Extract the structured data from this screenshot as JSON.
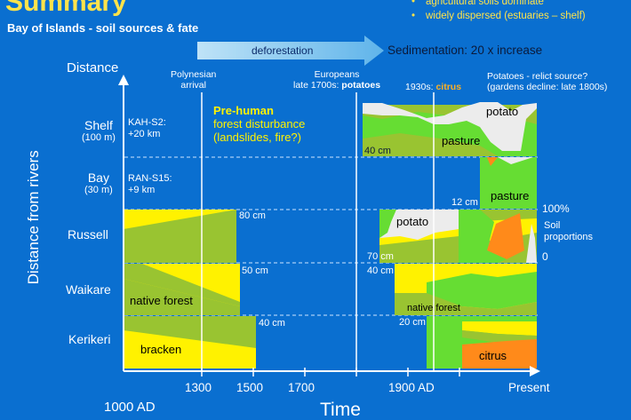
{
  "title": "Summary",
  "subtitle": "Bay of Islands - soil sources & fate",
  "bullets": [
    "agricultural soils dominate",
    "widely dispersed (estuaries – shelf)"
  ],
  "bullet_symbol": "•",
  "arrow_label": "deforestation",
  "sedimentation": "Sedimentation:  20 x increase",
  "axes": {
    "y_title": "Distance",
    "y_rotated": "Distance from rivers",
    "x_title": "Time",
    "x_ticks": [
      "1000 AD",
      "1300",
      "1500",
      "1700",
      "1900 AD",
      "Present"
    ]
  },
  "rows": {
    "shelf": {
      "label": "Shelf",
      "sub": "(100 m)"
    },
    "bay": {
      "label": "Bay",
      "sub": "(30 m)"
    },
    "russell": {
      "label": "Russell"
    },
    "waikare": {
      "label": "Waikare"
    },
    "kerikeri": {
      "label": "Kerikeri"
    }
  },
  "cores": {
    "kah": {
      "name": "KAH-S2:",
      "dist": "+20 km"
    },
    "ran": {
      "name": "RAN-S15:",
      "dist": "+9 km"
    }
  },
  "events": {
    "polynesian": {
      "l1": "Polynesian",
      "l2": "arrival"
    },
    "europeans": {
      "l1": "Europeans",
      "l2a": "late 1700s: ",
      "l2b": "potatoes"
    },
    "y1930": {
      "a": "1930s: ",
      "b": "citrus"
    },
    "potatoes_relict": {
      "l1": "Potatoes - relict source?",
      "l2": "(gardens decline: late 1800s)"
    }
  },
  "prehuman": {
    "title": "Pre-human",
    "l1": "forest disturbance",
    "l2": "(landslides, fire?)"
  },
  "depths": [
    "80 cm",
    "50 cm",
    "40 cm",
    "40 cm",
    "12 cm",
    "70 cm",
    "40 cm",
    "20 cm"
  ],
  "region_labels": {
    "potato": "potato",
    "pasture": "pasture",
    "native_forest": "native forest",
    "bracken": "bracken",
    "citrus": "citrus"
  },
  "proportions": {
    "top": "100%",
    "l1": "Soil",
    "l2": "proportions",
    "bottom": "0"
  },
  "colors": {
    "background": "#0a6fd0",
    "title": "#ffe34a",
    "bracken": "#fff200",
    "native_forest": "#99c431",
    "pasture": "#66dd33",
    "potato": "#ececec",
    "citrus": "#ff8a1a",
    "arrow": "#99ccee"
  }
}
